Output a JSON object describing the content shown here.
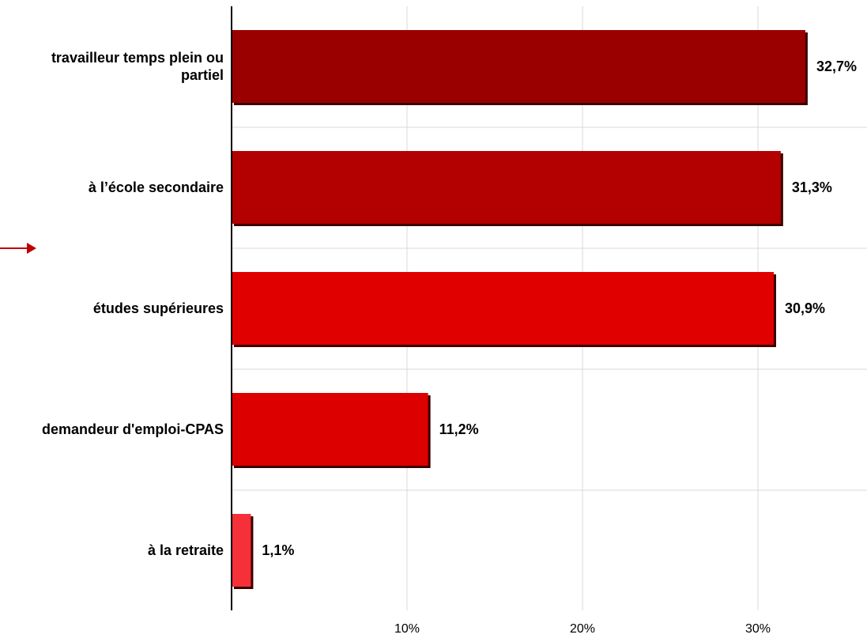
{
  "chart_data": {
    "type": "bar",
    "orientation": "horizontal",
    "categories": [
      [
        "travailleur temps plein ou",
        "partiel"
      ],
      [
        "à l’école secondaire"
      ],
      [
        "études supérieures"
      ],
      [
        "demandeur d'emploi-CPAS"
      ],
      [
        "à la retraite"
      ]
    ],
    "values": [
      32.7,
      31.3,
      30.9,
      11.2,
      1.1
    ],
    "value_labels": [
      "32,7%",
      "31,3%",
      "30,9%",
      "11,2%",
      "1,1%"
    ],
    "bar_colors": [
      "#9b0000",
      "#b30000",
      "#e00000",
      "#dd0000",
      "#f53038"
    ],
    "xlim": [
      0,
      36
    ],
    "ticks": [
      10,
      20,
      30
    ],
    "tick_labels": [
      "10%",
      "20%",
      "30%"
    ],
    "grid": true,
    "legend": "none",
    "title": "",
    "xlabel": "",
    "ylabel": ""
  },
  "colors": {
    "gridline": "#d9d9d9",
    "axis": "#000000",
    "arrow": "#c00000",
    "bar_shadow": "#3a0000"
  },
  "arrow_icon": "arrow-right-icon"
}
